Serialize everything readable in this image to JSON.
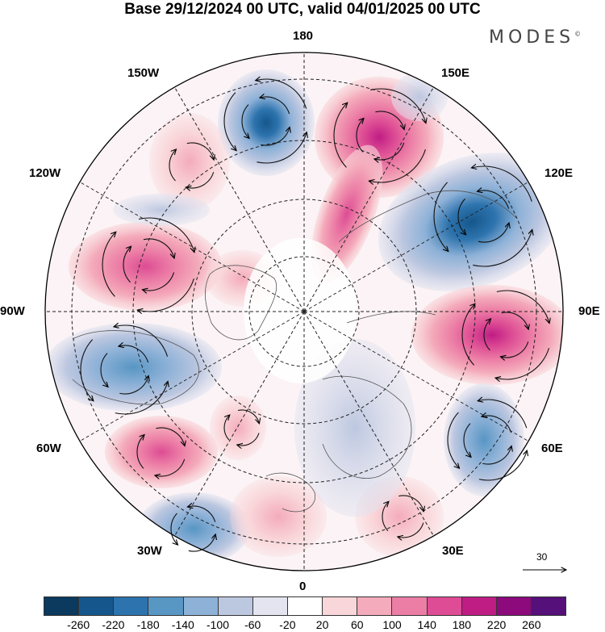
{
  "title": "Base 29/12/2024 00 UTC, valid 04/01/2025 00 UTC",
  "brand": "MODES",
  "brand_mark": "©",
  "lon_labels": {
    "n180": "180",
    "n150e": "150E",
    "n120e": "120E",
    "n90e": "90E",
    "n60e": "60E",
    "n30e": "30E",
    "n0": "0",
    "n30w": "30W",
    "n60w": "60W",
    "n90w": "90W",
    "n120w": "120W",
    "n150w": "150W"
  },
  "vector_reference": "30",
  "colorbar": {
    "ticks": [
      "-260",
      "-220",
      "-180",
      "-140",
      "-100",
      "-60",
      "-20",
      "20",
      "60",
      "100",
      "140",
      "180",
      "220",
      "260"
    ],
    "colors": [
      "#0b3a5e",
      "#15578c",
      "#2d73ad",
      "#5896c4",
      "#8db1d7",
      "#bcc7e0",
      "#e3e4f0",
      "#ffffff",
      "#f9d6d9",
      "#f4abbb",
      "#ec7ea6",
      "#dd4c94",
      "#bf1d84",
      "#8c0a7c",
      "#55107a"
    ]
  },
  "anomaly_centers": [
    {
      "sign": "negative",
      "level": "-180"
    },
    {
      "sign": "positive",
      "level": "180"
    },
    {
      "sign": "negative",
      "level": "-180"
    },
    {
      "sign": "positive",
      "level": "220"
    },
    {
      "sign": "negative",
      "level": "-140"
    },
    {
      "sign": "positive",
      "level": "140"
    },
    {
      "sign": "negative",
      "level": "-140"
    },
    {
      "sign": "positive",
      "level": "100"
    },
    {
      "sign": "positive",
      "level": "140"
    },
    {
      "sign": "negative",
      "level": "-140"
    },
    {
      "sign": "positive",
      "level": "60"
    },
    {
      "sign": "positive",
      "level": "60"
    },
    {
      "sign": "negative",
      "level": "-100"
    }
  ]
}
